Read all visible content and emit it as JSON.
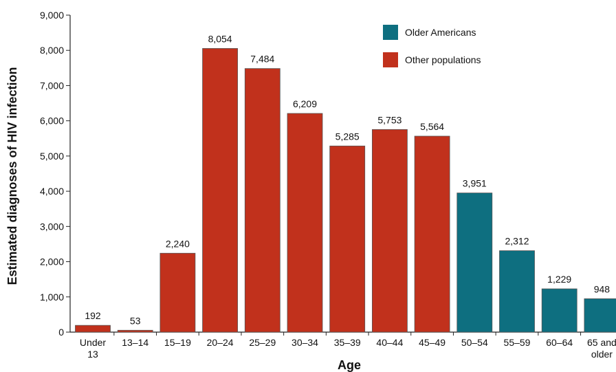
{
  "chart_data": {
    "type": "bar",
    "xlabel": "Age",
    "ylabel": "Estimated diagnoses of HIV infection",
    "ylim": [
      0,
      9000
    ],
    "yticks": [
      "0",
      "1,000",
      "2,000",
      "3,000",
      "4,000",
      "5,000",
      "6,000",
      "7,000",
      "8,000",
      "9,000"
    ],
    "categories": [
      [
        "Under",
        "13"
      ],
      [
        "13–14"
      ],
      [
        "15–19"
      ],
      [
        "20–24"
      ],
      [
        "25–29"
      ],
      [
        "30–34"
      ],
      [
        "35–39"
      ],
      [
        "40–44"
      ],
      [
        "45–49"
      ],
      [
        "50–54"
      ],
      [
        "55–59"
      ],
      [
        "60–64"
      ],
      [
        "65 and",
        "older"
      ]
    ],
    "values": [
      192,
      53,
      2240,
      8054,
      7484,
      6209,
      5285,
      5753,
      5564,
      3951,
      2312,
      1229,
      948
    ],
    "value_labels": [
      "192",
      "53",
      "2,240",
      "8,054",
      "7,484",
      "6,209",
      "5,285",
      "5,753",
      "5,564",
      "3,951",
      "2,312",
      "1,229",
      "948"
    ],
    "groups": [
      "other",
      "other",
      "other",
      "other",
      "other",
      "other",
      "other",
      "other",
      "other",
      "older",
      "older",
      "older",
      "older"
    ],
    "legend": [
      {
        "key": "older",
        "label": "Older Americans",
        "color": "#0e6f80"
      },
      {
        "key": "other",
        "label": "Other populations",
        "color": "#c1311c"
      }
    ],
    "legend_position": "top-right",
    "grid": false
  }
}
